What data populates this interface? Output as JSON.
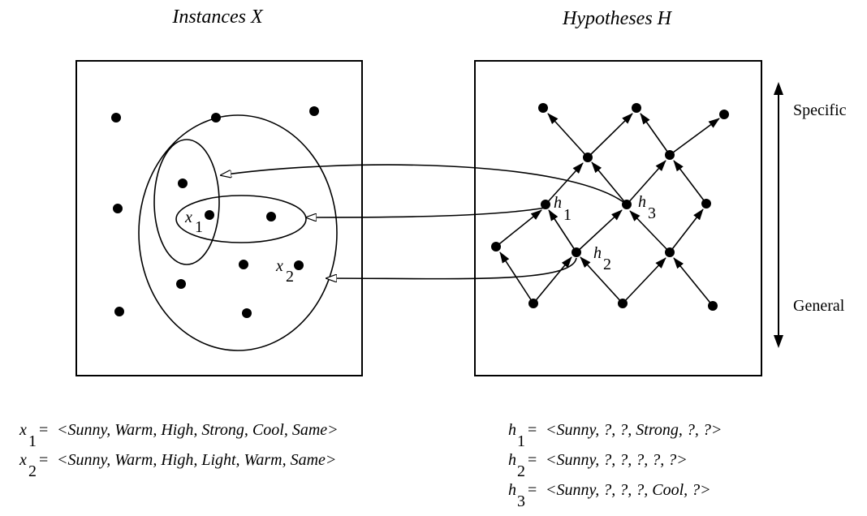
{
  "titles": {
    "instances": "Instances X",
    "hypotheses": "Hypotheses H"
  },
  "scale": {
    "specific": "Specific",
    "general": "General"
  },
  "labels": {
    "x1": {
      "main": "x",
      "sub": "1"
    },
    "x2": {
      "main": "x",
      "sub": "2"
    },
    "h1": {
      "main": "h",
      "sub": "1"
    },
    "h2": {
      "main": "h",
      "sub": "2"
    },
    "h3": {
      "main": "h",
      "sub": "3"
    }
  },
  "definitions": {
    "instances": [
      {
        "main": "x",
        "sub": "1",
        "eq": "= ",
        "value": "<Sunny, Warm, High, Strong, Cool, Same>"
      },
      {
        "main": "x",
        "sub": "2",
        "eq": "= ",
        "value": "<Sunny, Warm, High, Light, Warm, Same>"
      }
    ],
    "hypotheses": [
      {
        "main": "h",
        "sub": "1",
        "eq": "= ",
        "value": "<Sunny, ?, ?, Strong, ?, ?>"
      },
      {
        "main": "h",
        "sub": "2",
        "eq": "= ",
        "value": "<Sunny, ?, ?, ?, ?, ?>"
      },
      {
        "main": "h",
        "sub": "3",
        "eq": "= ",
        "value": "<Sunny, ?, ?, ?, Cool, ?>"
      }
    ]
  }
}
